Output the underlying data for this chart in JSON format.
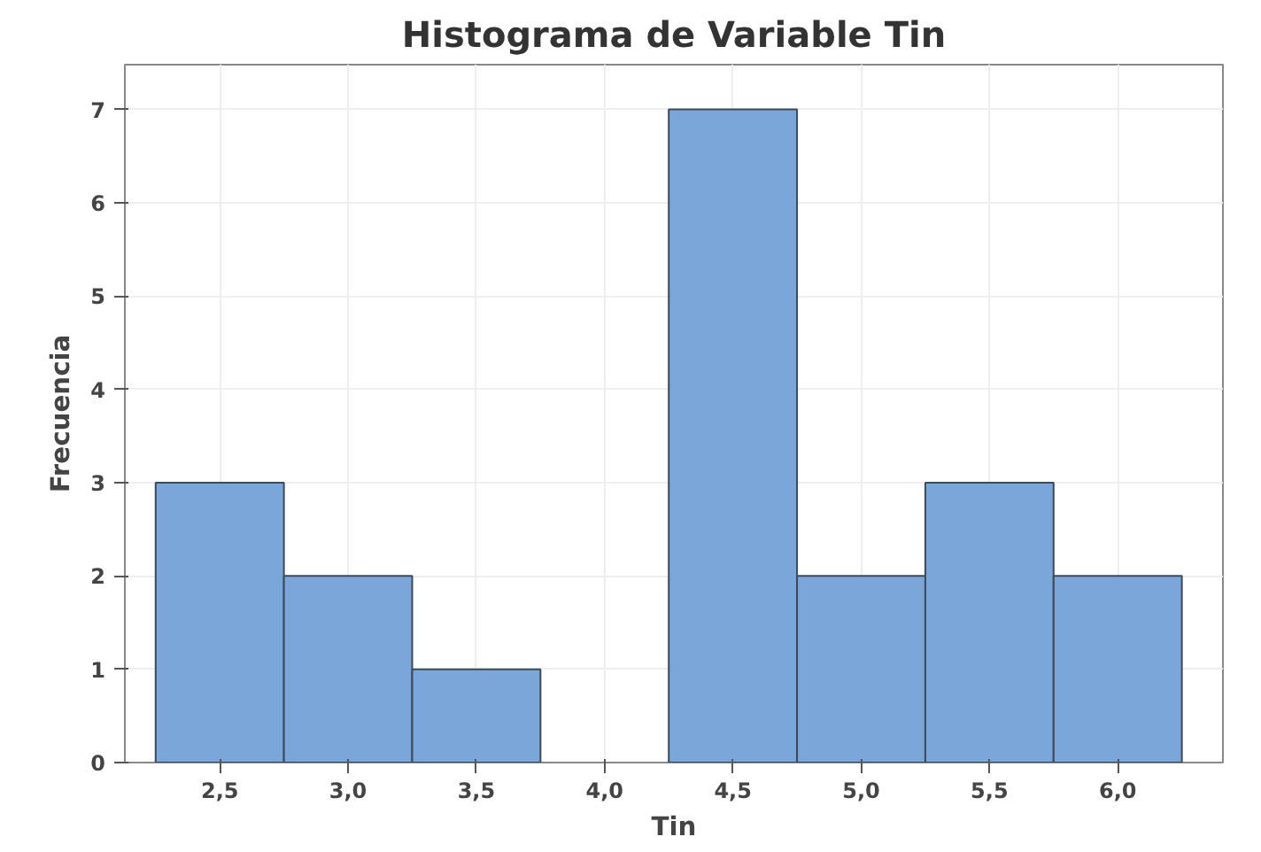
{
  "chart_data": {
    "type": "histogram",
    "title": "Histograma de Variable Tin",
    "xlabel": "Tin",
    "ylabel": "Frecuencia",
    "bins": [
      2.25,
      2.75,
      3.25,
      3.75,
      4.25,
      4.75,
      5.25,
      5.75,
      6.25
    ],
    "values": [
      3,
      2,
      1,
      0,
      7,
      2,
      3,
      2
    ],
    "color": "#7ba6da",
    "xlim": [
      2.13,
      6.41
    ],
    "ylim": [
      0,
      7.48
    ],
    "xticks": [
      {
        "value": 2.5,
        "label": "2,5"
      },
      {
        "value": 3.0,
        "label": "3,0"
      },
      {
        "value": 3.5,
        "label": "3,5"
      },
      {
        "value": 4.0,
        "label": "4,0"
      },
      {
        "value": 4.5,
        "label": "4,5"
      },
      {
        "value": 5.0,
        "label": "5,0"
      },
      {
        "value": 5.5,
        "label": "5,5"
      },
      {
        "value": 6.0,
        "label": "6,0"
      }
    ],
    "yticks": [
      0,
      1,
      2,
      3,
      4,
      5,
      6,
      7
    ],
    "grid": true
  }
}
